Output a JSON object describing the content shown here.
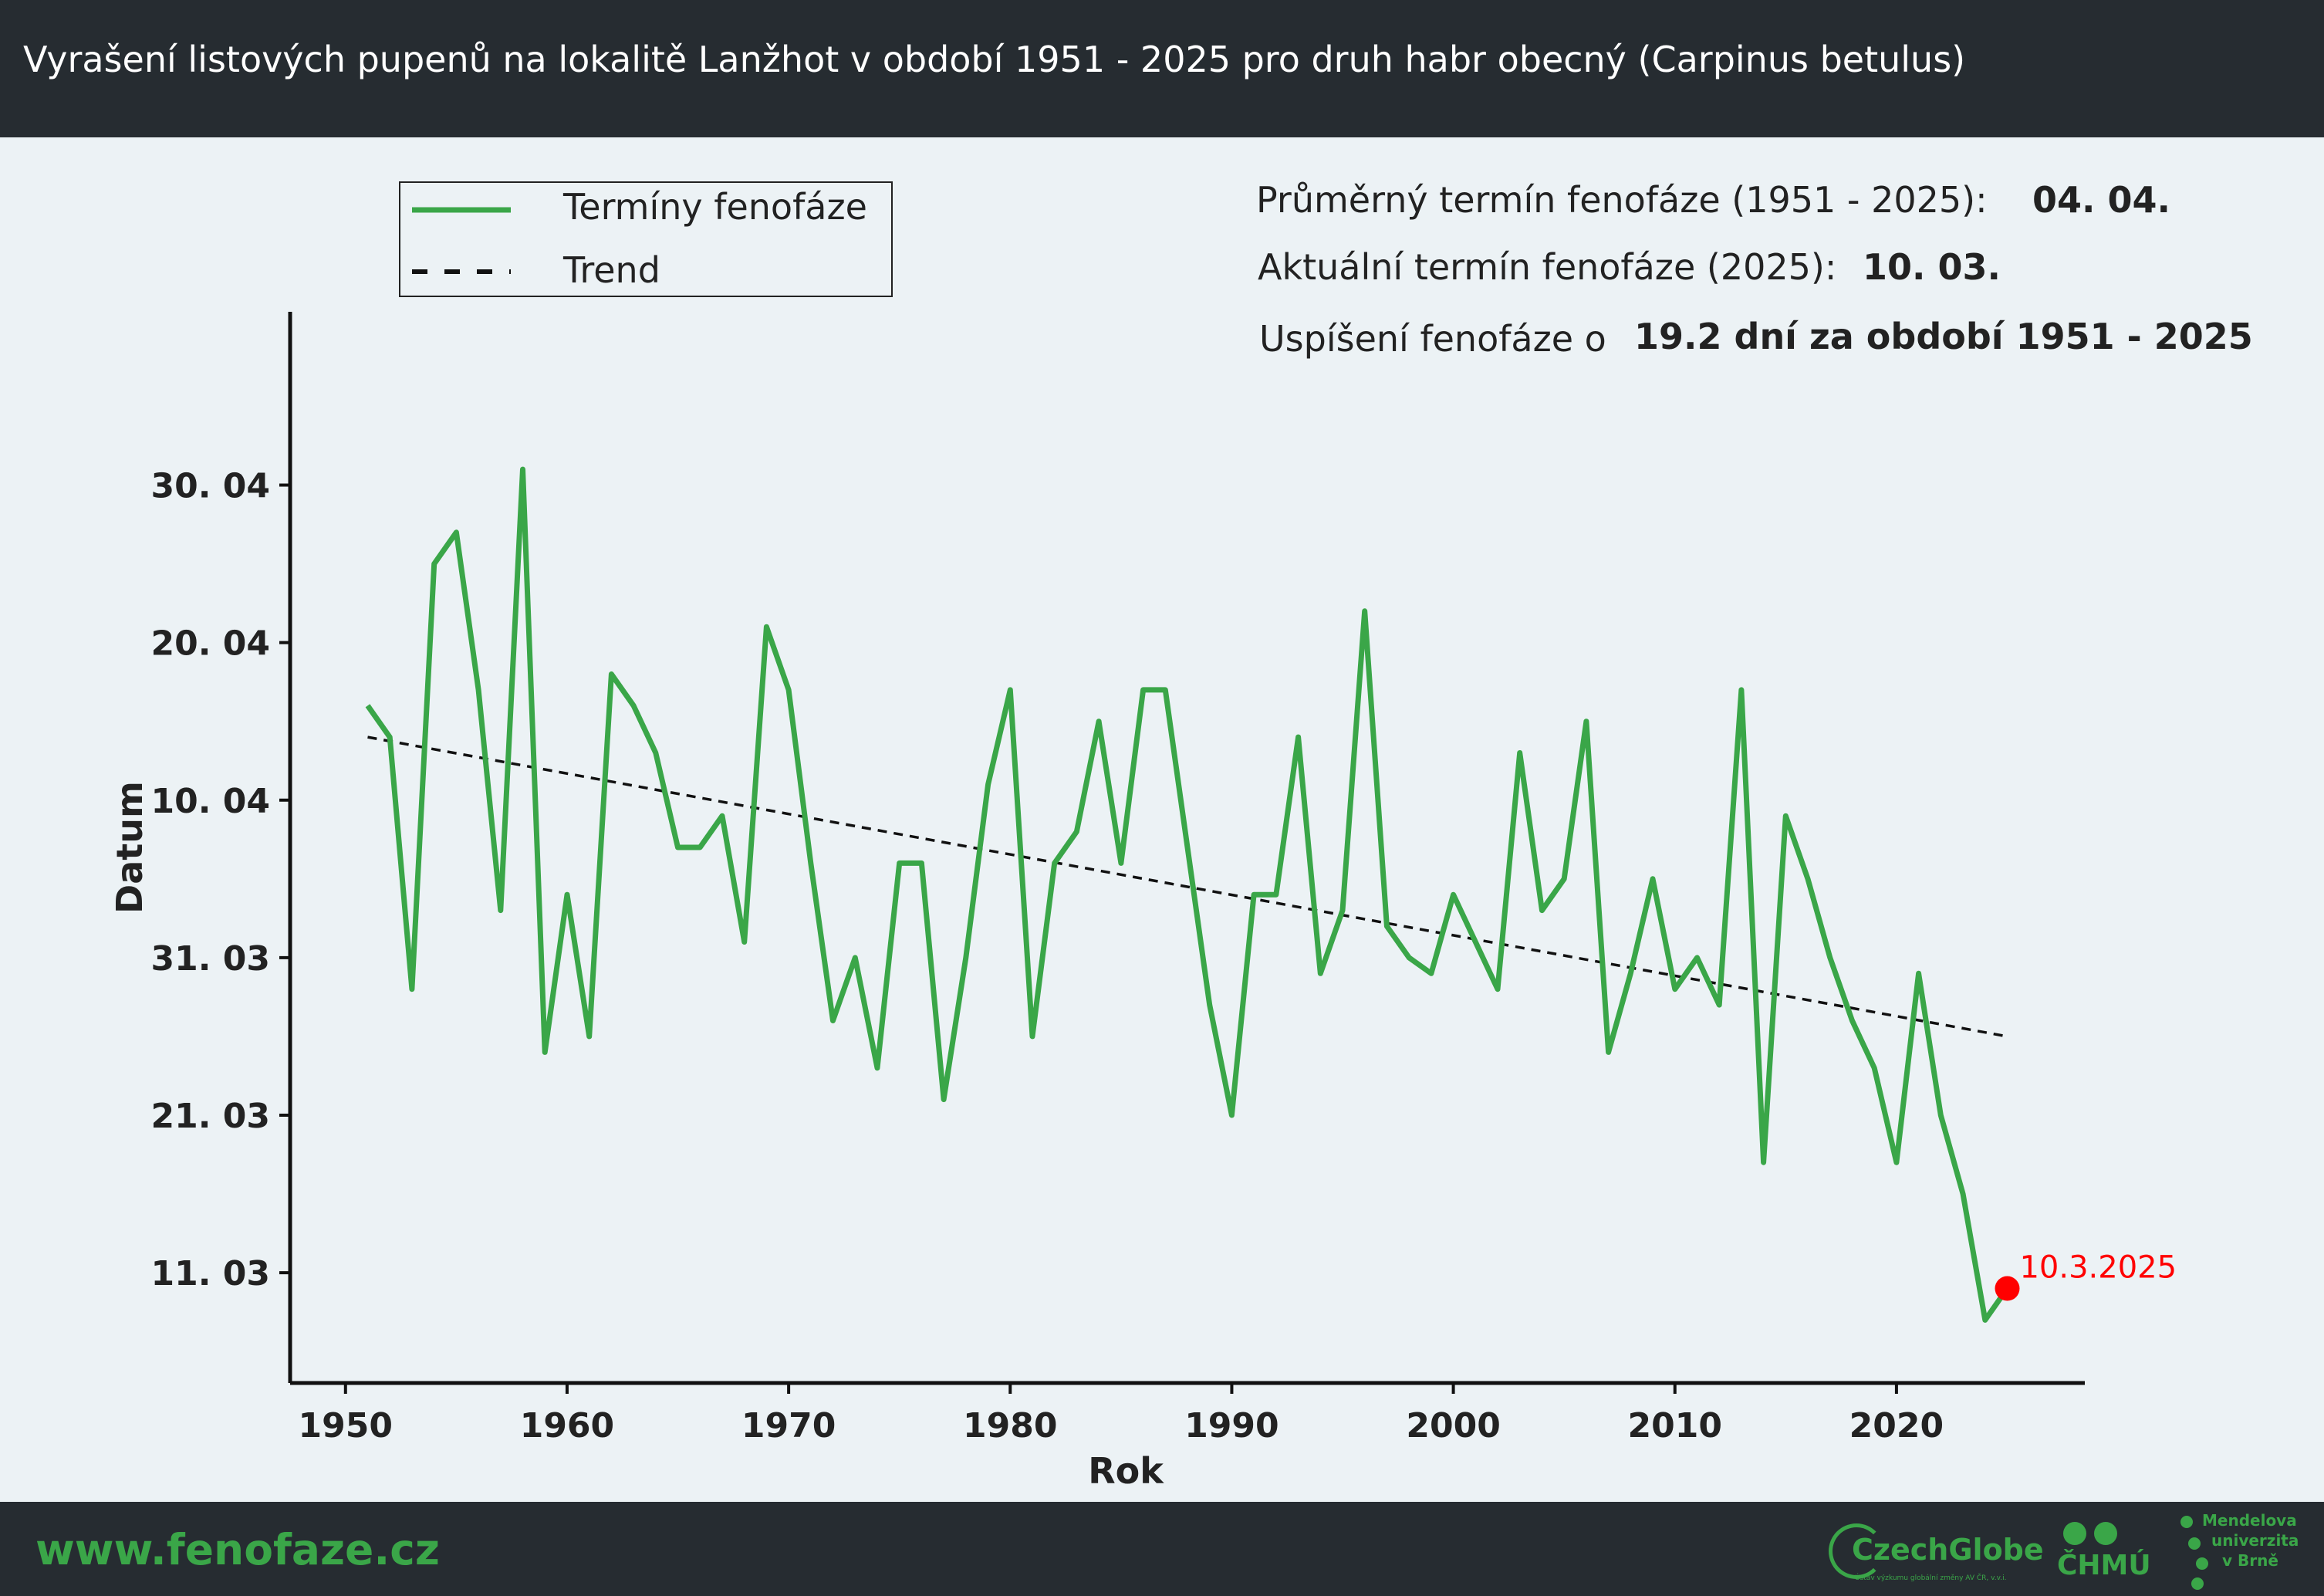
{
  "header": {
    "title": "Vyrašení listových pupenů na lokalitě Lanžhot v období 1951 - 2025 pro druh habr obecný (Carpinus betulus)"
  },
  "footer": {
    "url": "www.fenofaze.cz",
    "logos": {
      "czechglobe": "CzechGlobe",
      "czechglobe_sub": "Ústav výzkumu globální změny AV ČR, v.v.i.",
      "chmu": "ČHMÚ",
      "mendel": [
        "Mendelova",
        "univerzita",
        "v Brně"
      ]
    }
  },
  "stats": {
    "avg_label": "Průměrný termín fenofáze (1951 - 2025):",
    "avg_value": "04. 04.",
    "current_label": "Aktuální termín fenofáze (2025):",
    "current_value": "10. 03.",
    "shift_label": "Uspíšení fenofáze o",
    "shift_value": "19.2 dní za období 1951 - 2025"
  },
  "colors": {
    "series": "#3aa648",
    "trend": "#111111",
    "highlight": "#ff0000",
    "axis": "#111111",
    "text": "#222222"
  },
  "chart_data": {
    "type": "line",
    "xlabel": "Rok",
    "ylabel": "Datum",
    "xlim": [
      1947.5,
      2028.5
    ],
    "ylim": [
      "03-04",
      "05-11"
    ],
    "x_ticks": [
      1950,
      1960,
      1970,
      1980,
      1990,
      2000,
      2010,
      2020
    ],
    "y_ticks": [
      {
        "value": "03-11",
        "label": "11. 03"
      },
      {
        "value": "03-21",
        "label": "21. 03"
      },
      {
        "value": "03-31",
        "label": "31. 03"
      },
      {
        "value": "04-10",
        "label": "10. 04"
      },
      {
        "value": "04-20",
        "label": "20. 04"
      },
      {
        "value": "04-30",
        "label": "30. 04"
      }
    ],
    "legend": {
      "position": "top-left",
      "entries": [
        {
          "label": "Termíny fenofáze",
          "style": "solid"
        },
        {
          "label": "Trend",
          "style": "dashed"
        }
      ]
    },
    "series": [
      {
        "name": "Termíny fenofáze",
        "x": [
          1951,
          1952,
          1953,
          1954,
          1955,
          1956,
          1957,
          1958,
          1959,
          1960,
          1961,
          1962,
          1963,
          1964,
          1965,
          1966,
          1967,
          1968,
          1969,
          1970,
          1971,
          1972,
          1973,
          1974,
          1975,
          1976,
          1977,
          1978,
          1979,
          1980,
          1981,
          1982,
          1983,
          1984,
          1985,
          1986,
          1987,
          1988,
          1989,
          1990,
          1991,
          1992,
          1993,
          1994,
          1995,
          1996,
          1997,
          1998,
          1999,
          2000,
          2001,
          2002,
          2003,
          2004,
          2005,
          2006,
          2007,
          2008,
          2009,
          2010,
          2011,
          2012,
          2013,
          2014,
          2015,
          2016,
          2017,
          2018,
          2019,
          2020,
          2021,
          2022,
          2023,
          2024,
          2025
        ],
        "y": [
          "04-16",
          "04-14",
          "03-29",
          "04-25",
          "04-27",
          "04-17",
          "04-03",
          "05-01",
          "03-25",
          "04-04",
          "03-26",
          "04-18",
          "04-16",
          "04-13",
          "04-07",
          "04-07",
          "04-09",
          "04-01",
          "04-21",
          "04-17",
          "04-06",
          "03-27",
          "03-31",
          "03-24",
          "04-06",
          "04-06",
          "03-22",
          "03-31",
          "04-11",
          "04-17",
          "03-26",
          "04-06",
          "04-08",
          "04-15",
          "04-06",
          "04-17",
          "04-17",
          "04-07",
          "03-28",
          "03-21",
          "04-04",
          "04-04",
          "04-14",
          "03-30",
          "04-03",
          "04-22",
          "04-02",
          "03-31",
          "03-30",
          "04-04",
          "04-01",
          "03-29",
          "04-13",
          "04-03",
          "04-05",
          "04-15",
          "03-25",
          "03-30",
          "04-05",
          "03-29",
          "03-31",
          "03-28",
          "04-17",
          "03-18",
          "04-09",
          "04-05",
          "03-31",
          "03-27",
          "03-24",
          "03-18",
          "03-30",
          "03-21",
          "03-16",
          "03-08",
          "03-10"
        ]
      },
      {
        "name": "Trend",
        "x": [
          1951,
          2025
        ],
        "y": [
          "04-14",
          "03-26"
        ]
      }
    ],
    "annotations": [
      {
        "x": 2025,
        "y": "03-10",
        "label": "10.3.2025"
      }
    ]
  }
}
